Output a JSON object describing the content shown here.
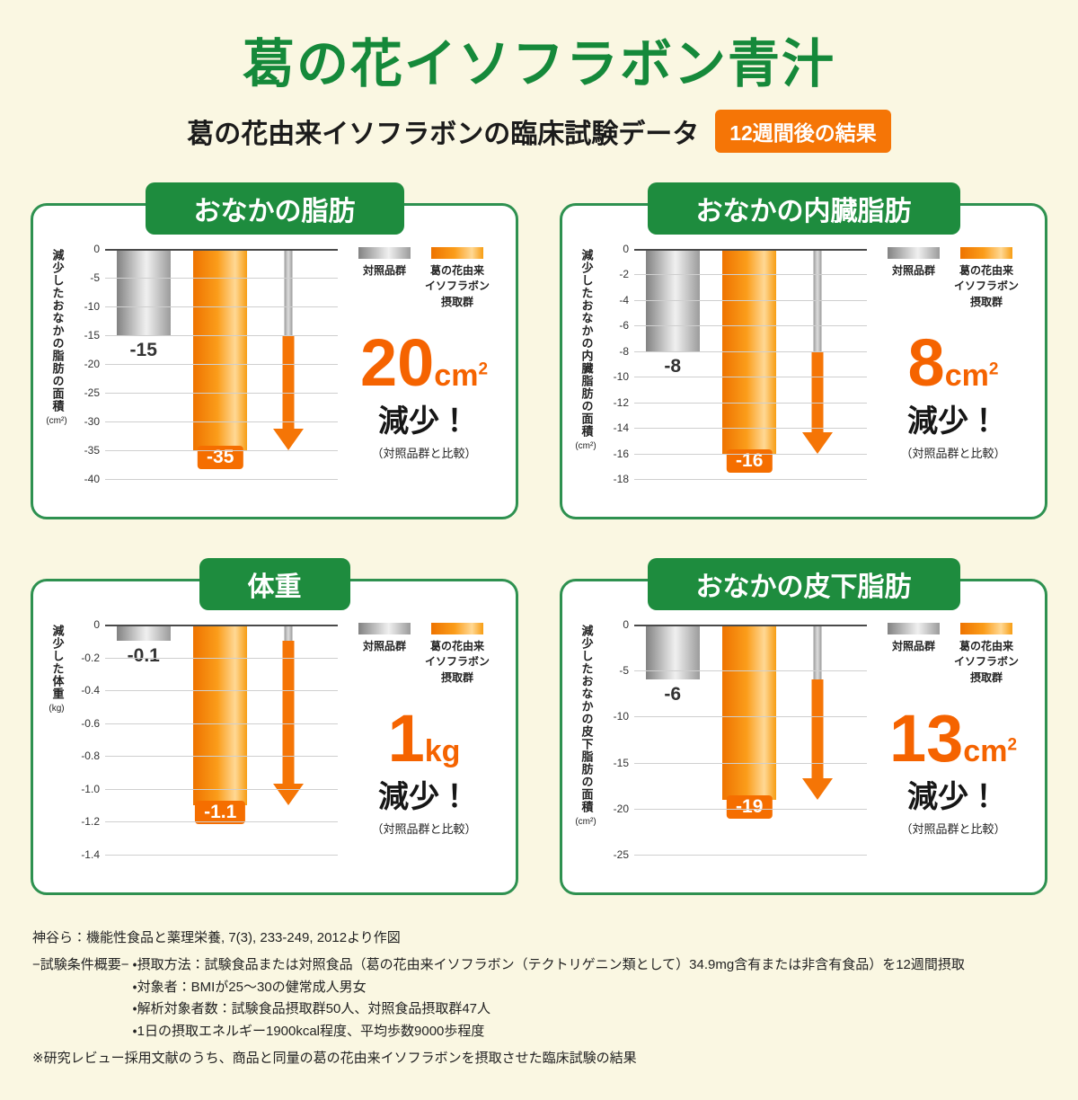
{
  "header": {
    "title": "葛の花イソフラボン青汁",
    "subtitle": "葛の花由来イソフラボンの臨床試験データ",
    "badge": "12週間後の結果"
  },
  "legend": {
    "control": "対照品群",
    "treatment": "葛の花由来\nイソフラボン\n摂取群"
  },
  "accent_colors": {
    "green": "#1e8c3e",
    "orange": "#f57506"
  },
  "chart_data": [
    {
      "type": "bar",
      "title": "おなかの脂肪",
      "ylabel": "減少したおなかの脂肪の面積",
      "y_unit": "(cm²)",
      "ylim": [
        0,
        -40
      ],
      "yticks": [
        "0",
        "-5",
        "-10",
        "-15",
        "-20",
        "-25",
        "-30",
        "-35",
        "-40"
      ],
      "series": [
        {
          "name": "対照品群",
          "value": -15,
          "label": "-15"
        },
        {
          "name": "葛の花由来イソフラボン摂取群",
          "value": -35,
          "label": "-35"
        }
      ],
      "arrow": {
        "from": -15,
        "to": -35
      },
      "result": {
        "value": "20",
        "unit_base": "cm",
        "unit_sup": "2",
        "word": "減少！",
        "note": "（対照品群と比較）"
      }
    },
    {
      "type": "bar",
      "title": "おなかの内臓脂肪",
      "ylabel": "減少したおなかの内臓脂肪の面積",
      "y_unit": "(cm²)",
      "ylim": [
        0,
        -18
      ],
      "yticks": [
        "0",
        "-2",
        "-4",
        "-6",
        "-8",
        "-10",
        "-12",
        "-14",
        "-16",
        "-18"
      ],
      "series": [
        {
          "name": "対照品群",
          "value": -8,
          "label": "-8"
        },
        {
          "name": "葛の花由来イソフラボン摂取群",
          "value": -16,
          "label": "-16"
        }
      ],
      "arrow": {
        "from": -8,
        "to": -16
      },
      "result": {
        "value": "8",
        "unit_base": "cm",
        "unit_sup": "2",
        "word": "減少！",
        "note": "（対照品群と比較）"
      }
    },
    {
      "type": "bar",
      "title": "体重",
      "ylabel": "減少した体重",
      "y_unit": "(kg)",
      "ylim": [
        0,
        -1.4
      ],
      "yticks": [
        "0",
        "-0.2",
        "-0.4",
        "-0.6",
        "-0.8",
        "-1.0",
        "-1.2",
        "-1.4"
      ],
      "series": [
        {
          "name": "対照品群",
          "value": -0.1,
          "label": "-0.1"
        },
        {
          "name": "葛の花由来イソフラボン摂取群",
          "value": -1.1,
          "label": "-1.1"
        }
      ],
      "arrow": {
        "from": -0.1,
        "to": -1.1
      },
      "result": {
        "value": "1",
        "unit_base": "kg",
        "unit_sup": "",
        "word": "減少！",
        "note": "（対照品群と比較）"
      }
    },
    {
      "type": "bar",
      "title": "おなかの皮下脂肪",
      "ylabel": "減少したおなかの皮下脂肪の面積",
      "y_unit": "(cm²)",
      "ylim": [
        0,
        -25
      ],
      "yticks": [
        "0",
        "-5",
        "-10",
        "-15",
        "-20",
        "-25"
      ],
      "series": [
        {
          "name": "対照品群",
          "value": -6,
          "label": "-6"
        },
        {
          "name": "葛の花由来イソフラボン摂取群",
          "value": -19,
          "label": "-19"
        }
      ],
      "arrow": {
        "from": -6,
        "to": -19
      },
      "result": {
        "value": "13",
        "unit_base": "cm",
        "unit_sup": "2",
        "word": "減少！",
        "note": "（対照品群と比較）"
      }
    }
  ],
  "footer": {
    "source": "神谷ら：機能性食品と薬理栄養, 7(3), 233-249, 2012より作図",
    "conditions_label": "−試験条件概要−",
    "conditions": [
      "・摂取方法：試験食品または対照食品（葛の花由来イソフラボン（テクトリゲニン類として）34.9mg含有または非含有食品）を12週間摂取",
      "・対象者：BMIが25〜30の健常成人男女",
      "・解析対象者数：試験食品摂取群50人、対照食品摂取群47人",
      "・1日の摂取エネルギー1900kcal程度、平均歩数9000歩程度"
    ],
    "note": "※研究レビュー採用文献のうち、商品と同量の葛の花由来イソフラボンを摂取させた臨床試験の結果"
  }
}
